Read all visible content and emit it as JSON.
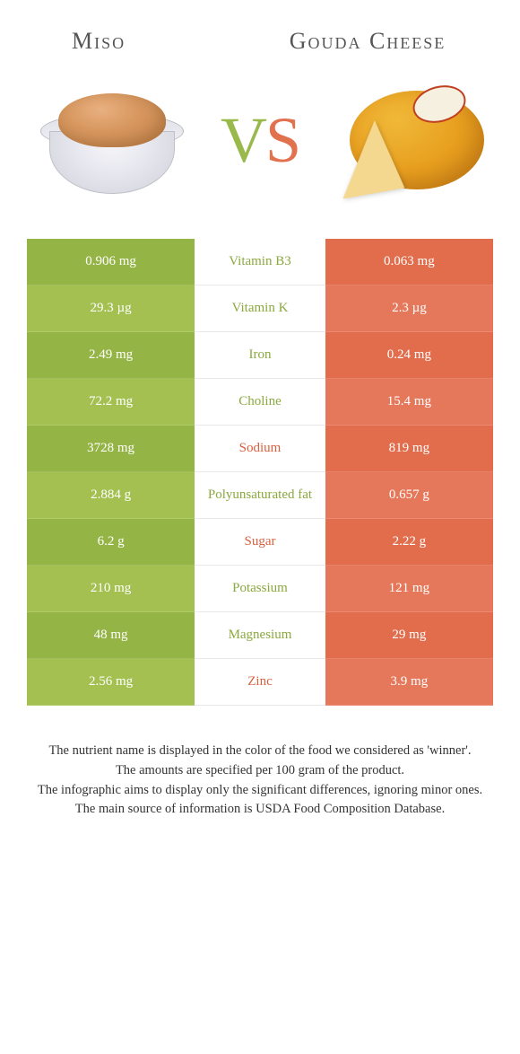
{
  "header": {
    "left_title": "Miso",
    "right_title": "Gouda Cheese",
    "vs_v": "V",
    "vs_s": "S"
  },
  "colors": {
    "green_odd": "#95b446",
    "green_even": "#a3c051",
    "orange_odd": "#e16d4d",
    "orange_even": "#e5785a",
    "green_text": "#8aa93e",
    "orange_text": "#d86040"
  },
  "rows": [
    {
      "left": "0.906 mg",
      "nutrient": "Vitamin B3",
      "winner": "green",
      "right": "0.063 mg"
    },
    {
      "left": "29.3 µg",
      "nutrient": "Vitamin K",
      "winner": "green",
      "right": "2.3 µg"
    },
    {
      "left": "2.49 mg",
      "nutrient": "Iron",
      "winner": "green",
      "right": "0.24 mg"
    },
    {
      "left": "72.2 mg",
      "nutrient": "Choline",
      "winner": "green",
      "right": "15.4 mg"
    },
    {
      "left": "3728 mg",
      "nutrient": "Sodium",
      "winner": "orange",
      "right": "819 mg"
    },
    {
      "left": "2.884 g",
      "nutrient": "Polyunsaturated fat",
      "winner": "green",
      "right": "0.657 g"
    },
    {
      "left": "6.2 g",
      "nutrient": "Sugar",
      "winner": "orange",
      "right": "2.22 g"
    },
    {
      "left": "210 mg",
      "nutrient": "Potassium",
      "winner": "green",
      "right": "121 mg"
    },
    {
      "left": "48 mg",
      "nutrient": "Magnesium",
      "winner": "green",
      "right": "29 mg"
    },
    {
      "left": "2.56 mg",
      "nutrient": "Zinc",
      "winner": "orange",
      "right": "3.9 mg"
    }
  ],
  "footer": {
    "line1": "The nutrient name is displayed in the color of the food we considered as 'winner'.",
    "line2": "The amounts are specified per 100 gram of the product.",
    "line3": "The infographic aims to display only the significant differences, ignoring minor ones.",
    "line4": "The main source of information is USDA Food Composition Database."
  }
}
